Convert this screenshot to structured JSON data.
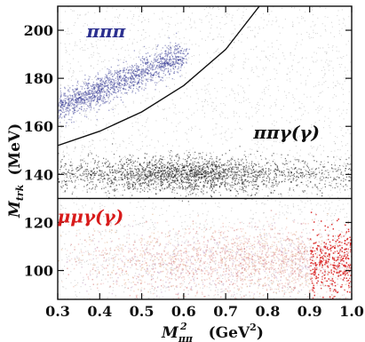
{
  "chart_data": {
    "type": "scatter",
    "title": "",
    "xlabel": "M",
    "xlabel_sub": "ππ",
    "xlabel_sup": "2",
    "xlabel_unit": "(GeV",
    "xlabel_unit_sup": "2",
    "xlabel_unit_close": ")",
    "ylabel": "M",
    "ylabel_sub": "trk",
    "ylabel_unit": "(MeV)",
    "xlim": [
      0.3,
      1.0
    ],
    "ylim": [
      88,
      210
    ],
    "x_ticks": [
      0.3,
      0.4,
      0.5,
      0.6,
      0.7,
      0.8,
      0.9,
      1.0
    ],
    "x_tick_labels": [
      "0.3",
      "0.4",
      "0.5",
      "0.6",
      "0.7",
      "0.8",
      "0.9",
      "1.0"
    ],
    "y_ticks": [
      100,
      120,
      140,
      160,
      180,
      200
    ],
    "y_tick_labels": [
      "100",
      "120",
      "140",
      "160",
      "180",
      "200"
    ],
    "grid": false,
    "series": [
      {
        "name": "πππ",
        "color": "#2b2f8f",
        "center_band": {
          "x": [
            0.3,
            0.6
          ],
          "y": [
            168,
            190
          ]
        }
      },
      {
        "name": "ππγ(γ)",
        "color": "#111111",
        "center_band": {
          "x": [
            0.3,
            1.0
          ],
          "y": [
            134,
            146
          ]
        }
      },
      {
        "name": "μμγ(γ)",
        "color": "#d81b1b",
        "center_band": {
          "x": [
            0.3,
            1.0
          ],
          "y": [
            95,
            112
          ]
        }
      }
    ],
    "region_labels": [
      {
        "text": "πππ",
        "color": "#2b2f8f",
        "x": 0.415,
        "y": 197
      },
      {
        "text": "ππγ(γ)",
        "color": "#111111",
        "x": 0.845,
        "y": 155
      },
      {
        "text": "μμγ(γ)",
        "color": "#d81b1b",
        "x": 0.378,
        "y": 120
      }
    ],
    "cut_lines": [
      {
        "kind": "horizontal",
        "y": 130
      },
      {
        "kind": "curve",
        "points": [
          [
            0.3,
            152
          ],
          [
            0.4,
            158
          ],
          [
            0.5,
            166
          ],
          [
            0.6,
            177
          ],
          [
            0.7,
            192
          ],
          [
            0.78,
            210
          ]
        ]
      }
    ]
  }
}
